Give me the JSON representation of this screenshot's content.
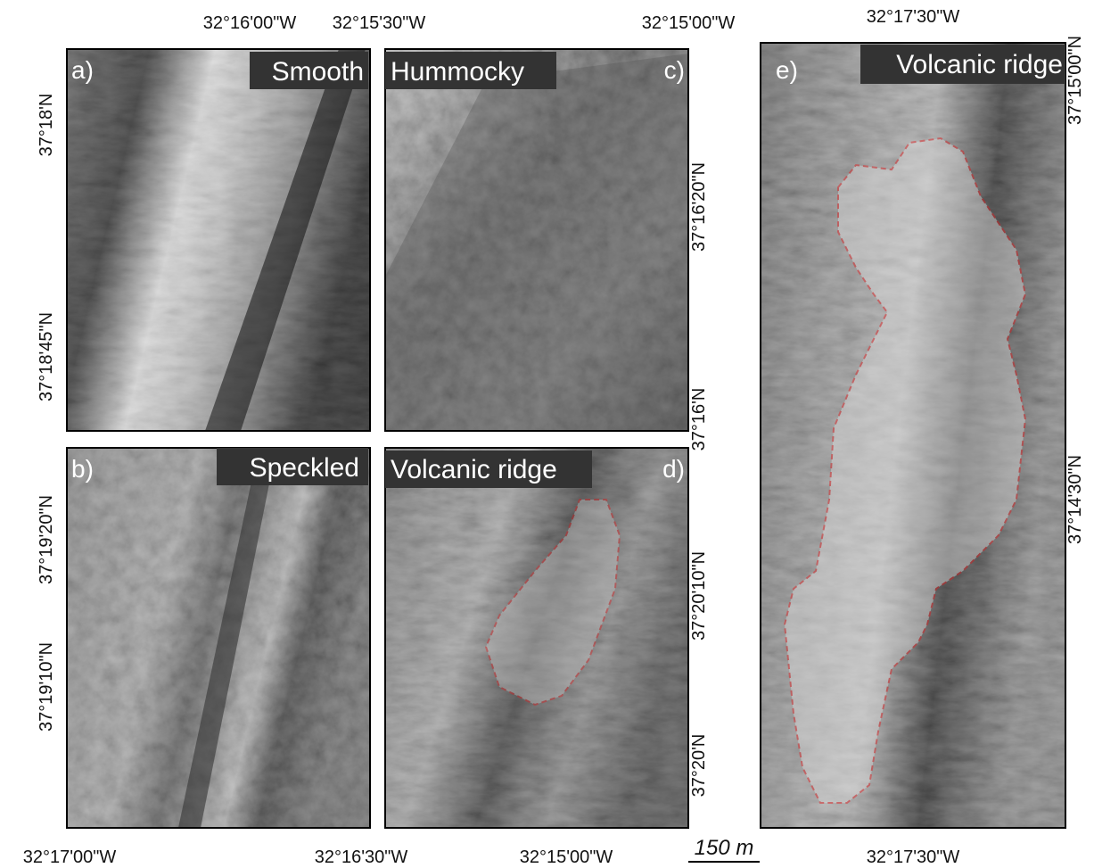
{
  "panels": [
    {
      "letter": "a)",
      "title": "Smooth"
    },
    {
      "letter": "b)",
      "title": "Speckled"
    },
    {
      "letter": "c)",
      "title": "Hummocky"
    },
    {
      "letter": "d)",
      "title": "Volcanic ridge"
    },
    {
      "letter": "e)",
      "title": "Volcanic ridge"
    }
  ],
  "top_labels": [
    "32°16'00\"W",
    "32°15'30\"W",
    "32°15'00\"W",
    "32°17'30\"W"
  ],
  "bottom_labels": [
    "32°17'00\"W",
    "32°16'30\"W",
    "32°15'00\"W",
    "32°17'30\"W"
  ],
  "left_labels": [
    "37°18'N",
    "37°18'45\"N",
    "37°19'20\"N",
    "37°19'10\"N"
  ],
  "right_labels": [
    "37°16'20\"N",
    "37°16'N",
    "37°20'10\"N",
    "37°20'N",
    "37°15'00\"N",
    "37°14'30\"N"
  ],
  "scale_bar": "150 m"
}
